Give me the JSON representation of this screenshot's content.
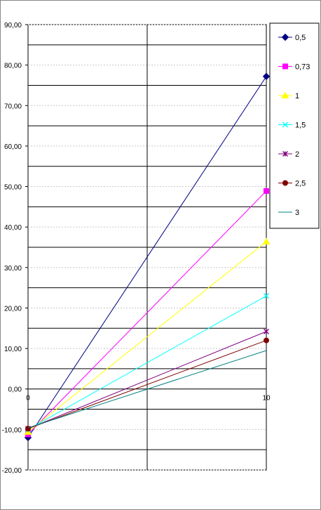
{
  "chart_data": {
    "type": "line",
    "x": [
      0,
      10
    ],
    "xlim": [
      0,
      10
    ],
    "ylim": [
      -20,
      90
    ],
    "y_ticks": [
      "90,00",
      "80,00",
      "70,00",
      "60,00",
      "50,00",
      "40,00",
      "30,00",
      "20,00",
      "10,00",
      "0,00",
      "-10,00",
      "-20,00"
    ],
    "x_ticks": [
      "0",
      "10"
    ],
    "grid": true,
    "legend_position": "right",
    "series": [
      {
        "name": "0,5",
        "color": "#000080",
        "marker": "diamond",
        "values": [
          -12.0,
          77.2
        ]
      },
      {
        "name": "0,73",
        "color": "#ff00ff",
        "marker": "square",
        "values": [
          -11.2,
          48.9
        ]
      },
      {
        "name": "1",
        "color": "#ffff00",
        "marker": "triangle",
        "values": [
          -10.6,
          36.4
        ]
      },
      {
        "name": "1,5",
        "color": "#00ffff",
        "marker": "x",
        "values": [
          -10.0,
          23.0
        ]
      },
      {
        "name": "2",
        "color": "#800080",
        "marker": "star",
        "values": [
          -9.8,
          14.2
        ]
      },
      {
        "name": "2,5",
        "color": "#800000",
        "marker": "circle",
        "values": [
          -9.8,
          12.0
        ]
      },
      {
        "name": "3",
        "color": "#008080",
        "marker": "none",
        "values": [
          -9.6,
          9.5
        ]
      }
    ]
  }
}
